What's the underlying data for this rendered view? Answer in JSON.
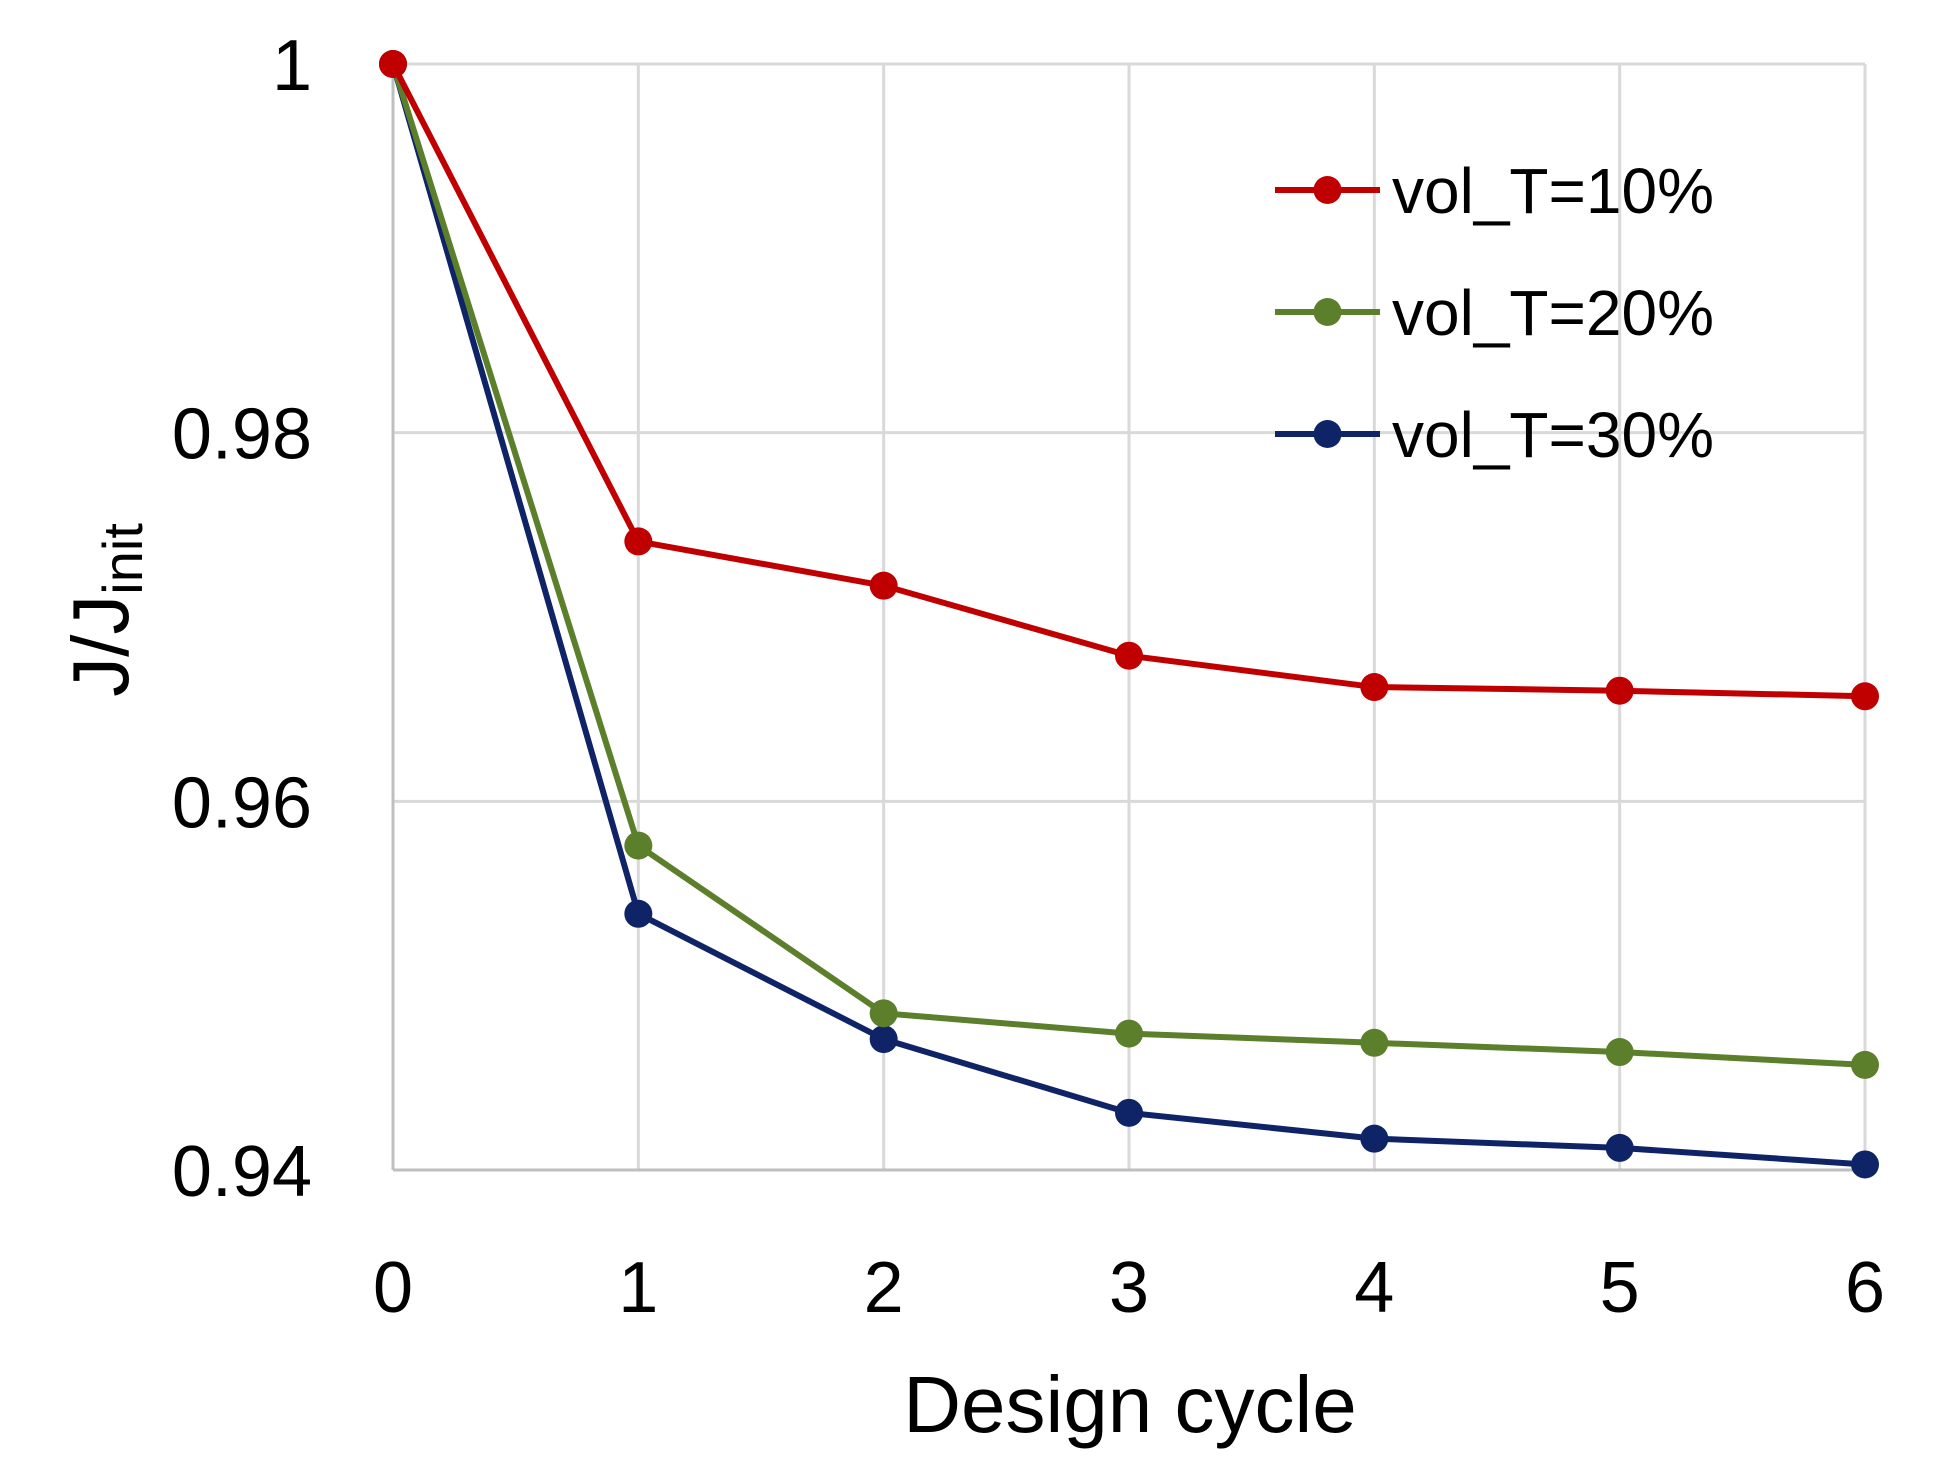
{
  "chart_data": {
    "type": "line",
    "title": "",
    "xlabel": "Design cycle",
    "ylabel": {
      "main": "J/J",
      "subscript": "init"
    },
    "x": [
      0,
      1,
      2,
      3,
      4,
      5,
      6
    ],
    "x_tick_labels": [
      "0",
      "1",
      "2",
      "3",
      "4",
      "5",
      "6"
    ],
    "xlim": [
      0,
      6
    ],
    "ylim": [
      0.94,
      1.0
    ],
    "y_ticks": [
      0.94,
      0.96,
      0.98,
      1.0
    ],
    "y_tick_labels": [
      "0.94",
      "0.96",
      "0.98",
      "1"
    ],
    "grid": true,
    "legend_position": "top-right",
    "series": [
      {
        "name": "vol_T=10%",
        "color": "#c00000",
        "values": [
          1.0,
          0.9741,
          0.9717,
          0.9679,
          0.9662,
          0.966,
          0.9657
        ]
      },
      {
        "name": "vol_T=20%",
        "color": "#5b7f2a",
        "values": [
          1.0,
          0.9576,
          0.9485,
          0.9474,
          0.9469,
          0.9464,
          0.9457
        ]
      },
      {
        "name": "vol_T=30%",
        "color": "#0e2467",
        "values": [
          1.0,
          0.9539,
          0.9471,
          0.9431,
          0.9417,
          0.9412,
          0.9403
        ]
      }
    ]
  }
}
